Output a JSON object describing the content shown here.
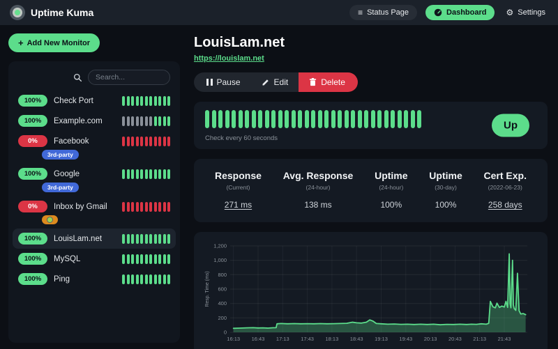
{
  "colors": {
    "accent_green": "#5cdd8b",
    "status_red": "#dc3545",
    "tag_blue": "#4169d8",
    "tag_orange": "#dd8a1e"
  },
  "navbar": {
    "app_title": "Uptime Kuma",
    "status_page_label": "Status Page",
    "dashboard_label": "Dashboard",
    "settings_label": "Settings"
  },
  "sidebar": {
    "add_monitor_label": "Add New Monitor",
    "search": {
      "placeholder": "Search..."
    },
    "monitors": [
      {
        "name": "Check Port",
        "uptime": "100%",
        "status": "up",
        "selected": false,
        "tags": [],
        "beats": [
          "up",
          "up",
          "up",
          "up",
          "up",
          "up",
          "up",
          "up",
          "up",
          "up",
          "up"
        ]
      },
      {
        "name": "Example.com",
        "uptime": "100%",
        "status": "up",
        "selected": false,
        "tags": [],
        "beats": [
          "empty",
          "empty",
          "empty",
          "empty",
          "empty",
          "empty",
          "empty",
          "up",
          "up",
          "up",
          "up"
        ]
      },
      {
        "name": "Facebook",
        "uptime": "0%",
        "status": "down",
        "selected": false,
        "tags": [
          {
            "label": "3rd-party",
            "style": "blue"
          }
        ],
        "beats": [
          "down",
          "down",
          "down",
          "down",
          "down",
          "down",
          "down",
          "down",
          "down",
          "down",
          "down"
        ]
      },
      {
        "name": "Google",
        "uptime": "100%",
        "status": "up",
        "selected": false,
        "tags": [
          {
            "label": "3rd-party",
            "style": "blue"
          }
        ],
        "beats": [
          "up",
          "up",
          "up",
          "up",
          "up",
          "up",
          "up",
          "up",
          "up",
          "up",
          "up"
        ]
      },
      {
        "name": "Inbox by Gmail",
        "uptime": "0%",
        "status": "down",
        "selected": false,
        "tags": [
          {
            "label": "",
            "style": "orange",
            "icon": "globe-icon"
          }
        ],
        "beats": [
          "down",
          "down",
          "down",
          "down",
          "down",
          "down",
          "down",
          "down",
          "down",
          "down",
          "down"
        ]
      },
      {
        "name": "LouisLam.net",
        "uptime": "100%",
        "status": "up",
        "selected": true,
        "tags": [],
        "beats": [
          "up",
          "up",
          "up",
          "up",
          "up",
          "up",
          "up",
          "up",
          "up",
          "up",
          "up"
        ]
      },
      {
        "name": "MySQL",
        "uptime": "100%",
        "status": "up",
        "selected": false,
        "tags": [],
        "beats": [
          "up",
          "up",
          "up",
          "up",
          "up",
          "up",
          "up",
          "up",
          "up",
          "up",
          "up"
        ]
      },
      {
        "name": "Ping",
        "uptime": "100%",
        "status": "up",
        "selected": false,
        "tags": [],
        "beats": [
          "up",
          "up",
          "up",
          "up",
          "up",
          "up",
          "up",
          "up",
          "up",
          "up",
          "up"
        ]
      }
    ]
  },
  "main": {
    "title": "LouisLam.net",
    "url": "https://louislam.net",
    "actions": {
      "pause_label": "Pause",
      "edit_label": "Edit",
      "delete_label": "Delete"
    },
    "status_banner": {
      "beats": {
        "count": 33,
        "status": "up"
      },
      "check_interval_text": "Check every 60 seconds",
      "status_label": "Up"
    },
    "stats": [
      {
        "label": "Response",
        "sub": "(Current)",
        "value": "271 ms",
        "link": true
      },
      {
        "label": "Avg. Response",
        "sub": "(24-hour)",
        "value": "138 ms",
        "link": false
      },
      {
        "label": "Uptime",
        "sub": "(24-hour)",
        "value": "100%",
        "link": false
      },
      {
        "label": "Uptime",
        "sub": "(30-day)",
        "value": "100%",
        "link": false
      },
      {
        "label": "Cert Exp.",
        "sub": "(2022-06-23)",
        "value": "258 days",
        "link": true
      }
    ]
  },
  "chart_data": {
    "type": "area",
    "title": "",
    "xlabel": "",
    "ylabel": "Resp. Time (ms)",
    "ylim": [
      0,
      1200
    ],
    "y_ticks": [
      0,
      200,
      400,
      600,
      800,
      1000,
      1200
    ],
    "x_domain_minutes": [
      -4,
      358
    ],
    "x_tick_minutes": [
      0,
      30,
      60,
      90,
      120,
      150,
      180,
      210,
      240,
      270,
      300,
      330
    ],
    "x_tick_labels": [
      "16:13",
      "16:43",
      "17:13",
      "17:43",
      "18:13",
      "18:43",
      "19:13",
      "19:43",
      "20:13",
      "20:43",
      "21:13",
      "21:43"
    ],
    "grid": true,
    "legend": "none",
    "series_name": "Resp. Time (ms)",
    "points": [
      [
        0,
        55
      ],
      [
        8,
        58
      ],
      [
        16,
        62
      ],
      [
        24,
        64
      ],
      [
        30,
        60
      ],
      [
        36,
        62
      ],
      [
        42,
        58
      ],
      [
        48,
        63
      ],
      [
        52,
        64
      ],
      [
        53,
        118
      ],
      [
        58,
        122
      ],
      [
        66,
        118
      ],
      [
        74,
        121
      ],
      [
        82,
        118
      ],
      [
        90,
        120
      ],
      [
        98,
        118
      ],
      [
        106,
        121
      ],
      [
        114,
        118
      ],
      [
        122,
        120
      ],
      [
        130,
        122
      ],
      [
        138,
        125
      ],
      [
        145,
        140
      ],
      [
        150,
        132
      ],
      [
        156,
        128
      ],
      [
        162,
        140
      ],
      [
        166,
        172
      ],
      [
        170,
        155
      ],
      [
        174,
        122
      ],
      [
        180,
        118
      ],
      [
        188,
        112
      ],
      [
        196,
        115
      ],
      [
        204,
        110
      ],
      [
        212,
        112
      ],
      [
        220,
        108
      ],
      [
        228,
        112
      ],
      [
        236,
        108
      ],
      [
        244,
        112
      ],
      [
        252,
        105
      ],
      [
        260,
        110
      ],
      [
        268,
        108
      ],
      [
        276,
        112
      ],
      [
        284,
        108
      ],
      [
        290,
        112
      ],
      [
        296,
        110
      ],
      [
        302,
        118
      ],
      [
        308,
        112
      ],
      [
        311,
        125
      ],
      [
        313,
        430
      ],
      [
        316,
        355
      ],
      [
        319,
        340
      ],
      [
        321,
        405
      ],
      [
        324,
        345
      ],
      [
        327,
        365
      ],
      [
        330,
        350
      ],
      [
        332,
        430
      ],
      [
        334,
        345
      ],
      [
        336,
        1090
      ],
      [
        337,
        400
      ],
      [
        338,
        340
      ],
      [
        340,
        1000
      ],
      [
        341,
        380
      ],
      [
        342,
        330
      ],
      [
        344,
        305
      ],
      [
        346,
        820
      ],
      [
        348,
        300
      ],
      [
        350,
        255
      ],
      [
        353,
        260
      ],
      [
        356,
        245
      ]
    ]
  }
}
